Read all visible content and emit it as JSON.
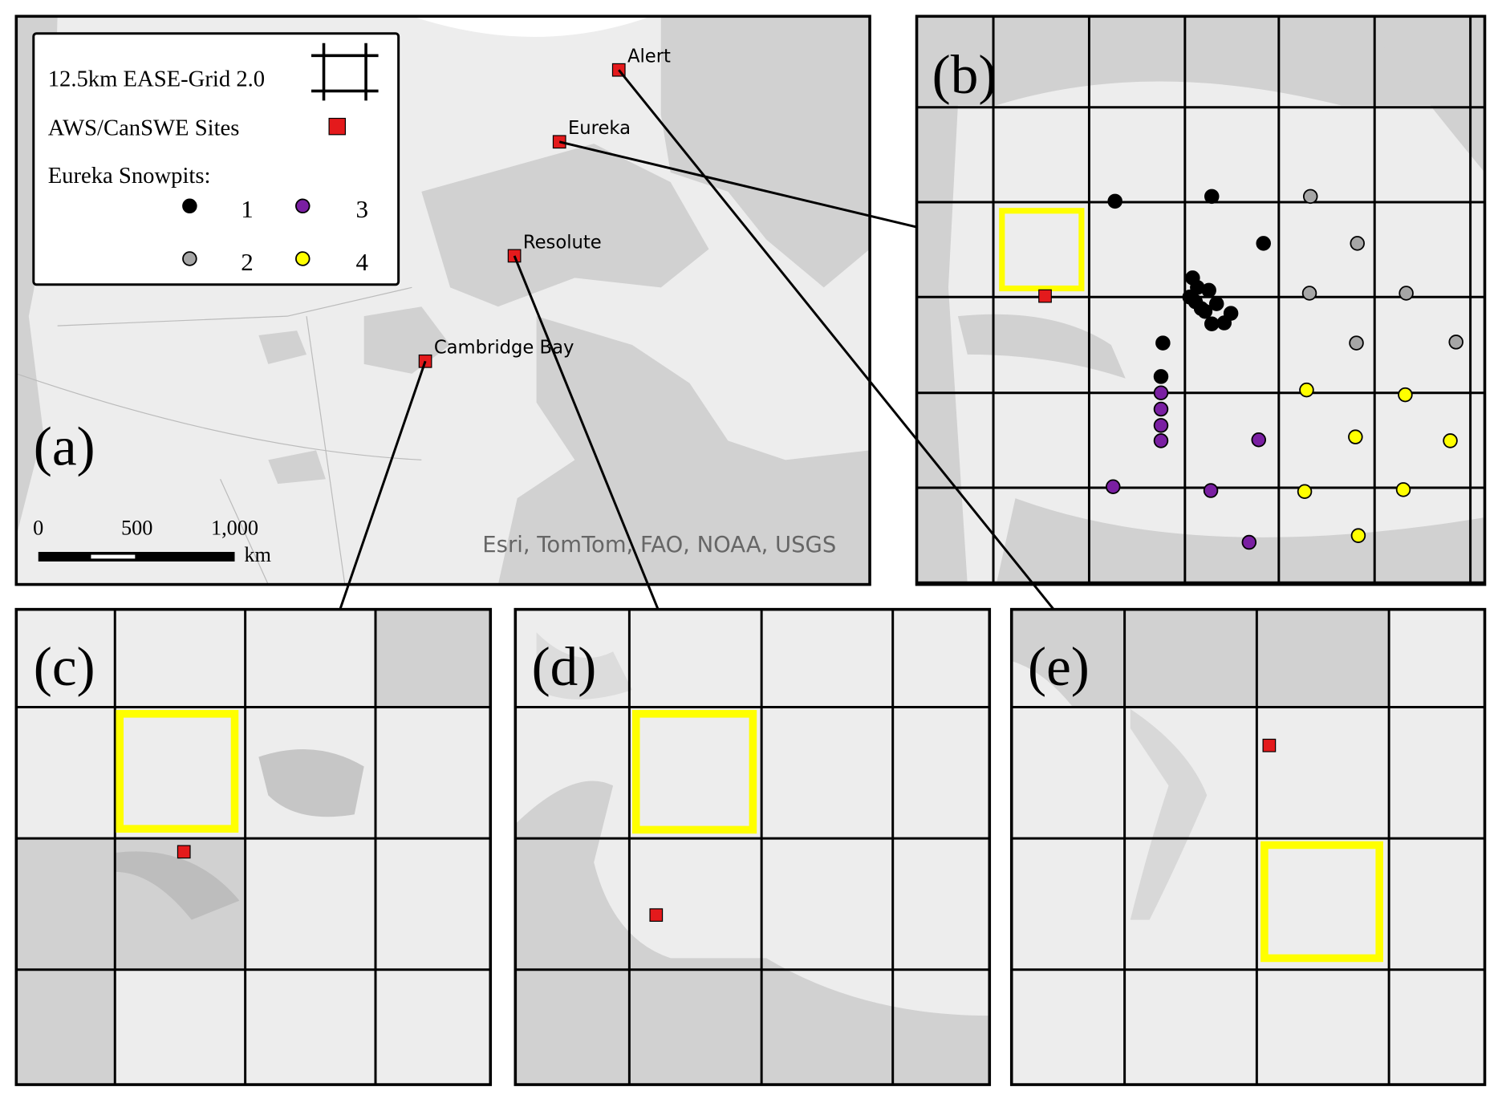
{
  "legend": {
    "grid": "12.5km EASE-Grid 2.0",
    "sites": "AWS/CanSWE Sites",
    "snowpits_title": "Eureka Snowpits:",
    "snowpits": [
      {
        "label": "1",
        "color": "#000000"
      },
      {
        "label": "2",
        "color": "#a6a6a6"
      },
      {
        "label": "3",
        "color": "#7a1fa2"
      },
      {
        "label": "4",
        "color": "#ffff00"
      }
    ]
  },
  "site_color": "#e41a1c",
  "box_color": "#ffff00",
  "panels": [
    "(a)",
    "(b)",
    "(c)",
    "(d)",
    "(e)"
  ],
  "sites": [
    "Alert",
    "Eureka",
    "Resolute",
    "Cambridge Bay"
  ],
  "scale_bar": {
    "ticks": [
      "0",
      "500",
      "1,000"
    ],
    "unit": "km"
  },
  "attribution": "Esri, TomTom, FAO, NOAA, USGS"
}
